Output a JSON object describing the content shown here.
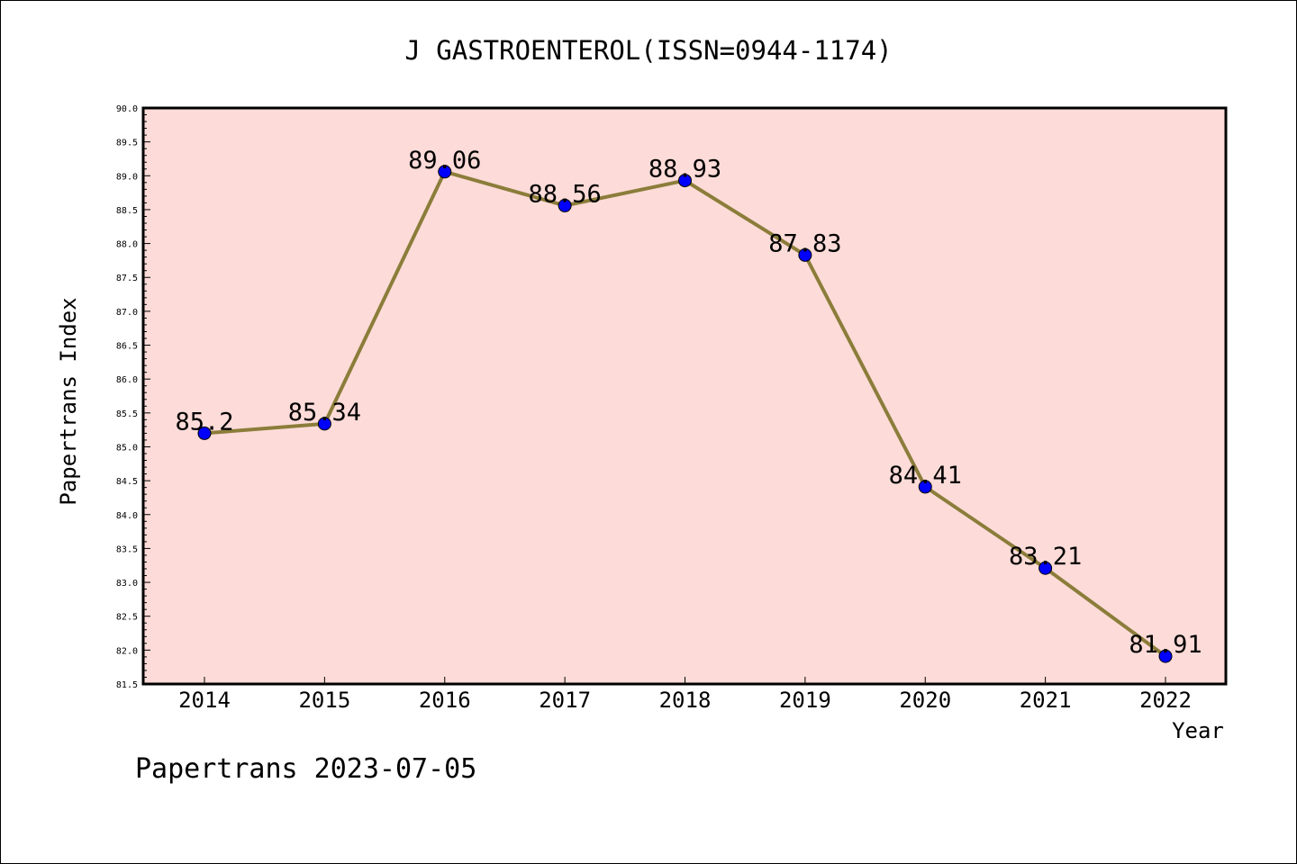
{
  "chart_data": {
    "type": "line",
    "title": "J GASTROENTEROL(ISSN=0944-1174)",
    "xlabel": "Year",
    "ylabel": "Papertrans Index",
    "categories": [
      "2014",
      "2015",
      "2016",
      "2017",
      "2018",
      "2019",
      "2020",
      "2021",
      "2022"
    ],
    "series": [
      {
        "values": [
          85.2,
          85.34,
          89.06,
          88.56,
          88.93,
          87.83,
          84.41,
          83.21,
          81.91
        ],
        "data_labels": [
          "85.2",
          "85.34",
          "89.06",
          "88.56",
          "88.93",
          "87.83",
          "84.41",
          "83.21",
          "81.91"
        ]
      }
    ],
    "ylim": [
      81.5,
      90.0
    ],
    "y_ticks": [
      "81.5",
      "82.0",
      "82.5",
      "83.0",
      "83.5",
      "84.0",
      "84.5",
      "85.0",
      "85.5",
      "86.0",
      "86.5",
      "87.0",
      "87.5",
      "88.0",
      "88.5",
      "89.0",
      "89.5",
      "90.0"
    ],
    "grid": false,
    "legend": "none",
    "colors": {
      "plot_background": "#fddbd8",
      "line": "#8b7d3a",
      "marker": "#0000ff",
      "axis": "#000000"
    }
  },
  "footer": {
    "text": "Papertrans 2023-07-05"
  }
}
